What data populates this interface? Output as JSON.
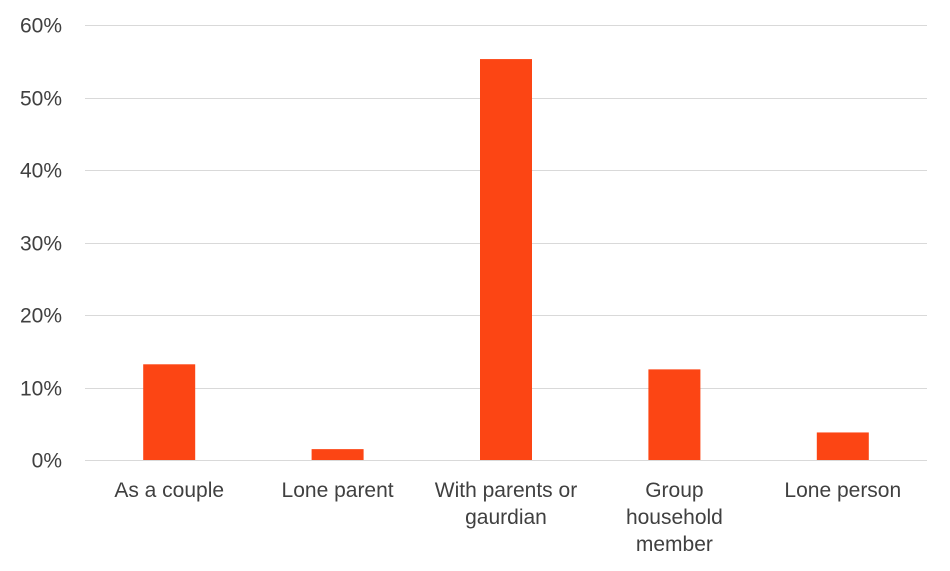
{
  "chart_data": {
    "type": "bar",
    "title": "",
    "xlabel": "",
    "ylabel": "",
    "categories": [
      [
        "As a couple"
      ],
      [
        "Lone parent"
      ],
      [
        "With parents or",
        "gaurdian"
      ],
      [
        "Group",
        "household",
        "member"
      ],
      [
        "Lone person"
      ]
    ],
    "values": [
      13.2,
      1.5,
      55.3,
      12.5,
      3.8
    ],
    "ylim": [
      0,
      60
    ],
    "yticks": [
      0,
      10,
      20,
      30,
      40,
      50,
      60
    ],
    "ytick_labels": [
      "0%",
      "10%",
      "20%",
      "30%",
      "40%",
      "50%",
      "60%"
    ],
    "grid": true,
    "legend": "none",
    "bar_color": "#fc4514"
  }
}
